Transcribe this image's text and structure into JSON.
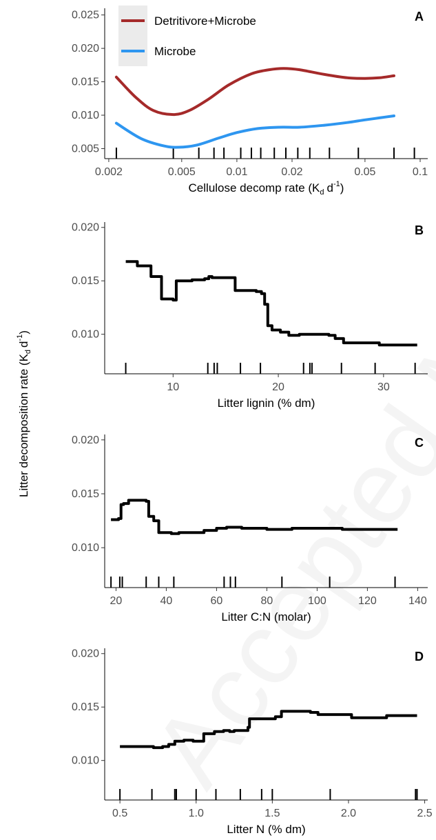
{
  "figure": {
    "shared_ylabel": "Litter decomposition rate (K",
    "shared_ylabel_sub": "d",
    "shared_ylabel_tail": "d",
    "shared_ylabel_sup": "-1",
    "shared_ylabel_close": ")",
    "watermark": "Accepted M"
  },
  "chart_data": [
    {
      "panel": "A",
      "type": "line",
      "xscale": "log",
      "xlim": [
        0.0019,
        0.11
      ],
      "ylim": [
        0.0035,
        0.026
      ],
      "xticks": [
        0.002,
        0.005,
        0.01,
        0.02,
        0.05,
        0.1
      ],
      "xtick_labels": [
        "0.002",
        "0.005",
        "0.01",
        "0.02",
        "0.05",
        "0.1"
      ],
      "yticks": [
        0.005,
        0.01,
        0.015,
        0.02,
        0.025
      ],
      "ytick_labels": [
        "0.005",
        "0.010",
        "0.015",
        "0.020",
        "0.025"
      ],
      "xlabel": "Cellulose decomp rate (K",
      "xlabel_sub": "d",
      "xlabel_tail": "d",
      "xlabel_sup": "-1",
      "xlabel_close": ")",
      "legend": {
        "position": "top-left",
        "entries": [
          "Detritivore+Microbe",
          "Microbe"
        ]
      },
      "series": [
        {
          "name": "Detritivore+Microbe",
          "color": "#a52a2a",
          "x": [
            0.0022,
            0.0028,
            0.0035,
            0.0045,
            0.0055,
            0.007,
            0.009,
            0.012,
            0.015,
            0.018,
            0.022,
            0.03,
            0.04,
            0.05,
            0.06,
            0.072
          ],
          "y": [
            0.0157,
            0.0127,
            0.0107,
            0.0101,
            0.0107,
            0.0124,
            0.0145,
            0.0162,
            0.0168,
            0.017,
            0.0168,
            0.0161,
            0.0156,
            0.0155,
            0.0156,
            0.0159
          ]
        },
        {
          "name": "Microbe",
          "color": "#2e96f0",
          "x": [
            0.0022,
            0.003,
            0.004,
            0.0048,
            0.006,
            0.008,
            0.01,
            0.013,
            0.017,
            0.022,
            0.03,
            0.04,
            0.05,
            0.06,
            0.072
          ],
          "y": [
            0.0088,
            0.0065,
            0.0054,
            0.0052,
            0.0055,
            0.0066,
            0.0074,
            0.008,
            0.0082,
            0.0082,
            0.0085,
            0.0089,
            0.0093,
            0.0096,
            0.0099
          ]
        }
      ],
      "rug": [
        0.0022,
        0.0045,
        0.0062,
        0.0075,
        0.0085,
        0.0105,
        0.012,
        0.0135,
        0.016,
        0.0185,
        0.0215,
        0.025,
        0.032,
        0.046,
        0.072,
        0.093
      ]
    },
    {
      "panel": "B",
      "type": "line",
      "xlim": [
        3.5,
        34.2
      ],
      "ylim": [
        0.0063,
        0.0205
      ],
      "xticks": [
        10,
        20,
        30
      ],
      "xtick_labels": [
        "10",
        "20",
        "30"
      ],
      "yticks": [
        0.01,
        0.015,
        0.02
      ],
      "ytick_labels": [
        "0.010",
        "0.015",
        "0.020"
      ],
      "xlabel": "Litter lignin (% dm)",
      "step": true,
      "color": "#000000",
      "x": [
        5.5,
        6.6,
        7.5,
        7.9,
        8.9,
        10.0,
        10.3,
        11.6,
        11.8,
        12.6,
        13.0,
        13.4,
        13.7,
        15.7,
        15.9,
        17.6,
        17.9,
        18.4,
        18.7,
        19.0,
        19.4,
        20.2,
        21.0,
        22.0,
        24.0,
        24.8,
        25.4,
        26.2,
        28.0,
        29.6,
        33.2
      ],
      "y": [
        0.0168,
        0.0164,
        0.0164,
        0.0154,
        0.0133,
        0.0132,
        0.015,
        0.015,
        0.0151,
        0.0151,
        0.0152,
        0.0154,
        0.0153,
        0.0153,
        0.0141,
        0.0141,
        0.014,
        0.0138,
        0.0128,
        0.0108,
        0.0104,
        0.0102,
        0.0099,
        0.01,
        0.01,
        0.0099,
        0.0096,
        0.0092,
        0.0092,
        0.009,
        0.009
      ],
      "rug": [
        5.5,
        13.3,
        13.9,
        14.2,
        16.4,
        18.3,
        22.4,
        23.0,
        23.2,
        26.0,
        29.2,
        33.0
      ]
    },
    {
      "panel": "C",
      "type": "line",
      "xlim": [
        15.5,
        144
      ],
      "ylim": [
        0.0063,
        0.0205
      ],
      "xticks": [
        20,
        40,
        60,
        80,
        100,
        120,
        140
      ],
      "xtick_labels": [
        "20",
        "40",
        "60",
        "80",
        "100",
        "120",
        "140"
      ],
      "yticks": [
        0.01,
        0.015,
        0.02
      ],
      "ytick_labels": [
        "0.010",
        "0.015",
        "0.020"
      ],
      "xlabel": "Litter C:N (molar)",
      "step": true,
      "color": "#000000",
      "x": [
        18,
        21,
        22,
        23,
        25,
        32,
        33,
        35,
        37,
        42,
        45,
        55,
        60,
        64,
        70,
        80,
        90,
        105,
        110,
        132
      ],
      "y": [
        0.0126,
        0.0127,
        0.014,
        0.0141,
        0.0144,
        0.0143,
        0.0129,
        0.0125,
        0.0114,
        0.0113,
        0.0114,
        0.0116,
        0.0118,
        0.0119,
        0.0118,
        0.0117,
        0.0118,
        0.0118,
        0.0117,
        0.0117
      ],
      "rug": [
        18,
        21.5,
        22.5,
        32,
        37,
        43,
        63,
        65.5,
        67.5,
        86,
        105,
        131
      ]
    },
    {
      "panel": "D",
      "type": "line",
      "xlim": [
        0.4,
        2.52
      ],
      "ylim": [
        0.0063,
        0.0205
      ],
      "xticks": [
        0.5,
        1.0,
        1.5,
        2.0,
        2.5
      ],
      "xtick_labels": [
        "0.5",
        "1.0",
        "1.5",
        "2.0",
        "2.5"
      ],
      "yticks": [
        0.01,
        0.015,
        0.02
      ],
      "ytick_labels": [
        "0.010",
        "0.015",
        "0.020"
      ],
      "xlabel": "Litter N (% dm)",
      "step": true,
      "color": "#000000",
      "x": [
        0.5,
        0.68,
        0.72,
        0.76,
        0.78,
        0.82,
        0.86,
        0.92,
        0.98,
        1.01,
        1.05,
        1.12,
        1.18,
        1.22,
        1.25,
        1.3,
        1.34,
        1.35,
        1.44,
        1.52,
        1.56,
        1.75,
        1.8,
        1.96,
        2.02,
        2.2,
        2.25,
        2.45
      ],
      "y": [
        0.0113,
        0.0113,
        0.0112,
        0.0112,
        0.0113,
        0.0115,
        0.0118,
        0.0119,
        0.0118,
        0.0118,
        0.0125,
        0.0127,
        0.0128,
        0.0127,
        0.0128,
        0.0128,
        0.0131,
        0.0139,
        0.0139,
        0.0141,
        0.0146,
        0.0145,
        0.0143,
        0.0143,
        0.014,
        0.014,
        0.0142,
        0.0142
      ],
      "rug": [
        0.5,
        0.71,
        0.86,
        0.87,
        1.0,
        1.13,
        1.29,
        1.43,
        1.5,
        1.88,
        2.44,
        2.45
      ]
    }
  ]
}
